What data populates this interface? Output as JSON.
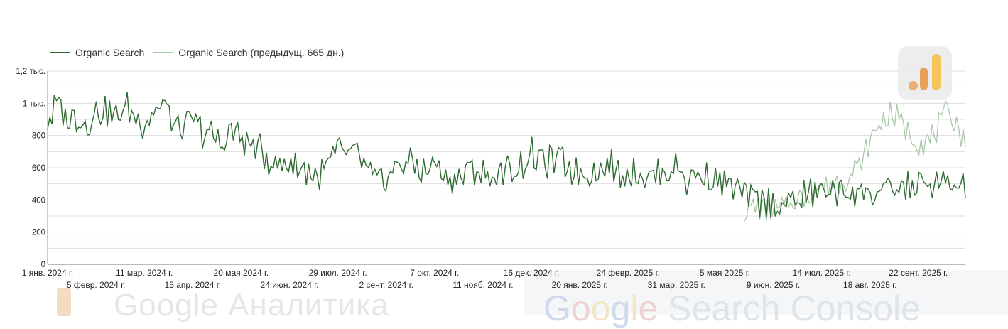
{
  "legend": {
    "series_current": "Organic Search",
    "series_previous": "Organic Search (предыдущ. 665 дн.)"
  },
  "colors": {
    "current": "#2e6b30",
    "previous": "#a9c8a8",
    "grid": "#dddddd"
  },
  "icons": {
    "badge": "google-analytics-icon"
  },
  "watermarks": {
    "left": "Google Аналитика",
    "right_g": [
      "G",
      "o",
      "o",
      "g",
      "l",
      "e"
    ],
    "right_rest": " Search Console"
  },
  "chart_data": {
    "type": "line",
    "title": "",
    "xlabel": "",
    "ylabel": "",
    "ylim": [
      0,
      1200
    ],
    "yticks": [
      "0",
      "200",
      "400",
      "600",
      "800",
      "1 тыс.",
      "1,2 тыс."
    ],
    "ytick_values": [
      0,
      200,
      400,
      600,
      800,
      1000,
      1200
    ],
    "xlim": [
      "2024-01-01",
      "2025-10-26"
    ],
    "xticks_upper": [
      {
        "date": "2024-01-01",
        "label": "1 янв. 2024 г."
      },
      {
        "date": "2024-03-11",
        "label": "11 мар. 2024 г."
      },
      {
        "date": "2024-05-20",
        "label": "20 мая 2024 г."
      },
      {
        "date": "2024-07-29",
        "label": "29 июл. 2024 г."
      },
      {
        "date": "2024-10-07",
        "label": "7 окт. 2024 г."
      },
      {
        "date": "2024-12-16",
        "label": "16 дек. 2024 г."
      },
      {
        "date": "2025-02-24",
        "label": "24 февр. 2025 г."
      },
      {
        "date": "2025-05-05",
        "label": "5 мая 2025 г."
      },
      {
        "date": "2025-07-14",
        "label": "14 июл. 2025 г."
      },
      {
        "date": "2025-09-22",
        "label": "22 сент. 2025 г."
      }
    ],
    "xticks_lower": [
      {
        "date": "2024-02-05",
        "label": "5 февр. 2024 г."
      },
      {
        "date": "2024-04-15",
        "label": "15 апр. 2024 г."
      },
      {
        "date": "2024-06-24",
        "label": "24 июн. 2024 г."
      },
      {
        "date": "2024-09-02",
        "label": "2 сент. 2024 г."
      },
      {
        "date": "2024-11-11",
        "label": "11 нояб. 2024 г."
      },
      {
        "date": "2025-01-20",
        "label": "20 янв. 2025 г."
      },
      {
        "date": "2025-03-31",
        "label": "31 мар. 2025 г."
      },
      {
        "date": "2025-06-09",
        "label": "9 июн. 2025 г."
      },
      {
        "date": "2025-08-18",
        "label": "18 авг. 2025 г."
      }
    ],
    "grid": true,
    "legend_position": "top-left",
    "series": [
      {
        "name": "Organic Search",
        "x": [
          "2024-01-01",
          "2024-01-08",
          "2024-01-15",
          "2024-01-22",
          "2024-01-29",
          "2024-02-05",
          "2024-02-12",
          "2024-02-19",
          "2024-02-26",
          "2024-03-04",
          "2024-03-11",
          "2024-03-18",
          "2024-03-25",
          "2024-04-01",
          "2024-04-08",
          "2024-04-15",
          "2024-04-22",
          "2024-04-29",
          "2024-05-06",
          "2024-05-13",
          "2024-05-20",
          "2024-05-27",
          "2024-06-03",
          "2024-06-10",
          "2024-06-17",
          "2024-06-24",
          "2024-07-01",
          "2024-07-08",
          "2024-07-15",
          "2024-07-22",
          "2024-07-29",
          "2024-08-05",
          "2024-08-12",
          "2024-08-19",
          "2024-08-26",
          "2024-09-02",
          "2024-09-09",
          "2024-09-16",
          "2024-09-23",
          "2024-09-30",
          "2024-10-07",
          "2024-10-14",
          "2024-10-21",
          "2024-10-28",
          "2024-11-04",
          "2024-11-11",
          "2024-11-18",
          "2024-11-25",
          "2024-12-02",
          "2024-12-09",
          "2024-12-16",
          "2024-12-23",
          "2024-12-30",
          "2025-01-06",
          "2025-01-13",
          "2025-01-20",
          "2025-01-27",
          "2025-02-03",
          "2025-02-10",
          "2025-02-17",
          "2025-02-24",
          "2025-03-03",
          "2025-03-10",
          "2025-03-17",
          "2025-03-24",
          "2025-03-31",
          "2025-04-07",
          "2025-04-14",
          "2025-04-21",
          "2025-04-28",
          "2025-05-05",
          "2025-05-12",
          "2025-05-19",
          "2025-05-26",
          "2025-06-02",
          "2025-06-09",
          "2025-06-16",
          "2025-06-23",
          "2025-06-30",
          "2025-07-07",
          "2025-07-14",
          "2025-07-21",
          "2025-07-28",
          "2025-08-04",
          "2025-08-11",
          "2025-08-18",
          "2025-08-25",
          "2025-09-01",
          "2025-09-08",
          "2025-09-15",
          "2025-09-22",
          "2025-09-29",
          "2025-10-06",
          "2025-10-13",
          "2025-10-20",
          "2025-10-26"
        ],
        "y": [
          880,
          1000,
          900,
          920,
          870,
          950,
          960,
          900,
          980,
          920,
          880,
          960,
          1000,
          870,
          830,
          900,
          820,
          800,
          740,
          840,
          780,
          740,
          700,
          650,
          600,
          640,
          600,
          580,
          530,
          620,
          700,
          690,
          680,
          580,
          500,
          540,
          600,
          640,
          620,
          560,
          640,
          560,
          520,
          550,
          600,
          560,
          540,
          560,
          590,
          620,
          680,
          640,
          640,
          650,
          600,
          570,
          580,
          580,
          620,
          580,
          570,
          580,
          540,
          560,
          580,
          620,
          520,
          560,
          540,
          540,
          500,
          470,
          430,
          400,
          380,
          380,
          360,
          390,
          420,
          440,
          450,
          470,
          430,
          460,
          460,
          430,
          460,
          440,
          470,
          480,
          500,
          480,
          490,
          500,
          470,
          500
        ]
      },
      {
        "name": "Organic Search (предыдущ. 665 дн.)",
        "x": [
          "2025-05-19",
          "2025-05-26",
          "2025-06-02",
          "2025-06-09",
          "2025-06-16",
          "2025-06-23",
          "2025-06-30",
          "2025-07-07",
          "2025-07-14",
          "2025-07-21",
          "2025-07-28",
          "2025-08-04",
          "2025-08-11",
          "2025-08-18",
          "2025-08-25",
          "2025-09-01",
          "2025-09-08",
          "2025-09-15",
          "2025-09-22",
          "2025-09-29",
          "2025-10-06",
          "2025-10-13",
          "2025-10-20",
          "2025-10-26"
        ],
        "y": [
          320,
          360,
          340,
          330,
          350,
          390,
          410,
          450,
          480,
          500,
          520,
          560,
          620,
          760,
          880,
          930,
          900,
          820,
          760,
          760,
          840,
          950,
          880,
          720
        ]
      }
    ]
  }
}
